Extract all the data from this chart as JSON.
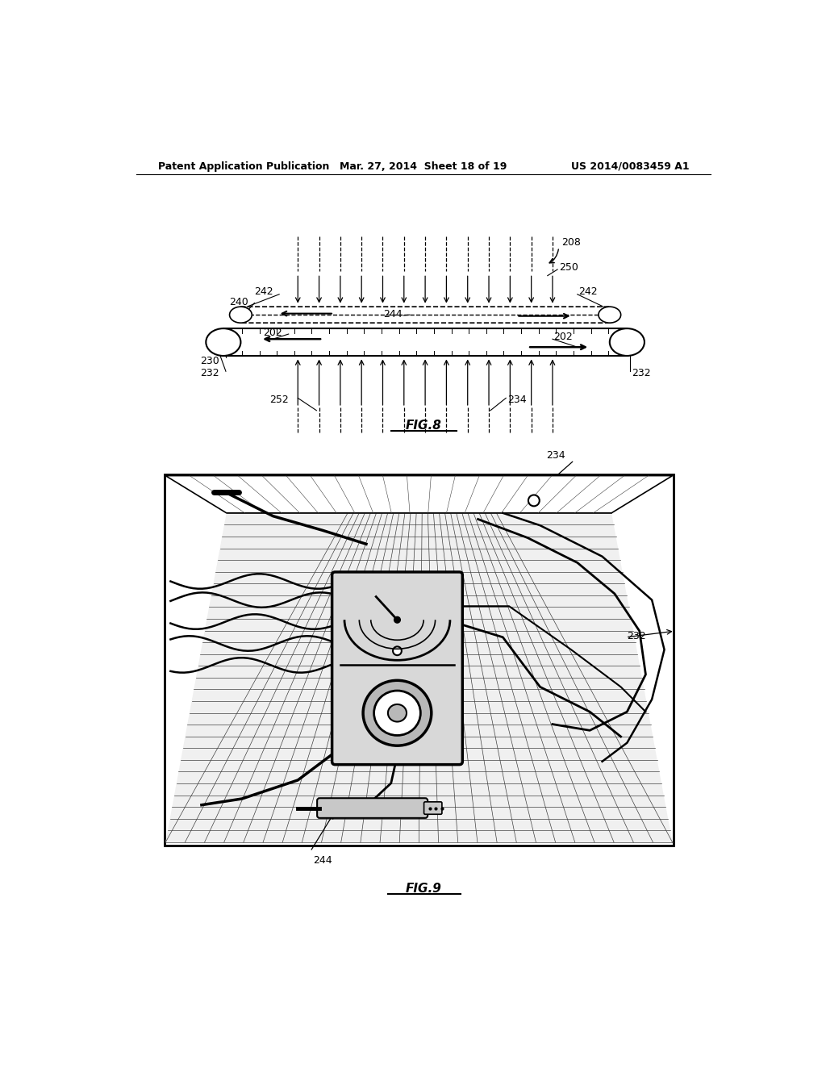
{
  "bg_color": "#ffffff",
  "header_left": "Patent Application Publication",
  "header_mid": "Mar. 27, 2014  Sheet 18 of 19",
  "header_right": "US 2014/0083459 A1",
  "fig8_title": "FIG.8",
  "fig9_title": "FIG.9",
  "fs_label": 9,
  "fs_title": 11
}
